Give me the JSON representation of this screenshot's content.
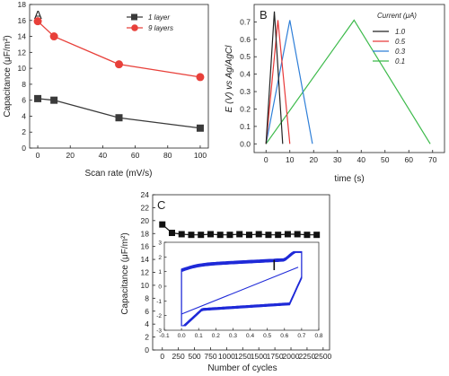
{
  "colors": {
    "black_series": "#3a3a3a",
    "red_series": "#e8403a",
    "cd_1": "#222222",
    "cd_05": "#e83a3a",
    "cd_03": "#2f7fd8",
    "cd_01": "#3cba4a",
    "cycle_series": "#111111",
    "cv_curve": "#1f2ad8"
  },
  "chart_data": [
    {
      "panel": "A",
      "type": "line",
      "xlabel": "Scan rate (mV/s)",
      "ylabel": "Capacitance (μF/m²)",
      "xlim": [
        -5,
        105
      ],
      "ylim": [
        0,
        18
      ],
      "xticks": [
        "0",
        "20",
        "40",
        "60",
        "80",
        "100"
      ],
      "yticks": [
        "0",
        "2",
        "4",
        "6",
        "8",
        "10",
        "12",
        "14",
        "16",
        "18"
      ],
      "legend_position": "top-right",
      "series": [
        {
          "name": "1 layer",
          "marker": "square",
          "x": [
            0,
            10,
            50,
            100
          ],
          "values": [
            6.2,
            6.0,
            3.8,
            2.5
          ]
        },
        {
          "name": "9 layers",
          "marker": "circle",
          "x": [
            0,
            10,
            50,
            100
          ],
          "values": [
            15.9,
            14.0,
            10.5,
            8.9
          ]
        }
      ]
    },
    {
      "panel": "B",
      "type": "line",
      "xlabel": "time (s)",
      "ylabel": "E (V) vs Ag/AgCl",
      "xlim": [
        -5,
        75
      ],
      "ylim": [
        -0.05,
        0.8
      ],
      "xticks": [
        "0",
        "10",
        "20",
        "30",
        "40",
        "50",
        "60",
        "70"
      ],
      "yticks": [
        "0.0",
        "0.1",
        "0.2",
        "0.3",
        "0.4",
        "0.5",
        "0.6",
        "0.7"
      ],
      "legend_title": "Current (μA)",
      "legend_position": "top-right",
      "series": [
        {
          "name": "1.0",
          "x": [
            0,
            3.5,
            7
          ],
          "values": [
            0,
            0.76,
            0
          ]
        },
        {
          "name": "0.5",
          "x": [
            0,
            5,
            10
          ],
          "values": [
            0,
            0.71,
            0
          ]
        },
        {
          "name": "0.3",
          "x": [
            0,
            10,
            19.5
          ],
          "values": [
            0,
            0.71,
            0
          ]
        },
        {
          "name": "0.1",
          "x": [
            0,
            37,
            69
          ],
          "values": [
            0,
            0.71,
            0
          ]
        }
      ]
    },
    {
      "panel": "C",
      "type": "scatter",
      "xlabel": "Number of cycles",
      "ylabel": "Capacitance (μF/m²)",
      "xlim": [
        -150,
        2600
      ],
      "ylim": [
        0,
        24
      ],
      "xticks": [
        "0",
        "250",
        "500",
        "750",
        "1000",
        "1250",
        "1500",
        "1750",
        "2000",
        "2250",
        "2500"
      ],
      "yticks": [
        "0",
        "2",
        "4",
        "6",
        "8",
        "10",
        "12",
        "14",
        "16",
        "18",
        "20",
        "22",
        "24"
      ],
      "series": [
        {
          "name": "",
          "marker": "square",
          "x": [
            0,
            150,
            300,
            450,
            600,
            750,
            900,
            1050,
            1200,
            1350,
            1500,
            1650,
            1800,
            1950,
            2100,
            2250,
            2400
          ],
          "values": [
            19.4,
            18.1,
            17.9,
            17.8,
            17.8,
            17.9,
            17.8,
            17.8,
            17.9,
            17.8,
            17.9,
            17.8,
            17.8,
            17.9,
            17.9,
            17.8,
            17.8
          ]
        }
      ],
      "inset": {
        "type": "line",
        "xlim": [
          -0.1,
          0.8
        ],
        "ylim": [
          -3,
          3
        ],
        "xticks": [
          "-0.1",
          "0.0",
          "0.1",
          "0.2",
          "0.3",
          "0.4",
          "0.5",
          "0.6",
          "0.7",
          "0.8"
        ],
        "yticks": [
          "-3",
          "-2",
          "-1",
          "0",
          "1",
          "2",
          "3"
        ]
      }
    }
  ]
}
